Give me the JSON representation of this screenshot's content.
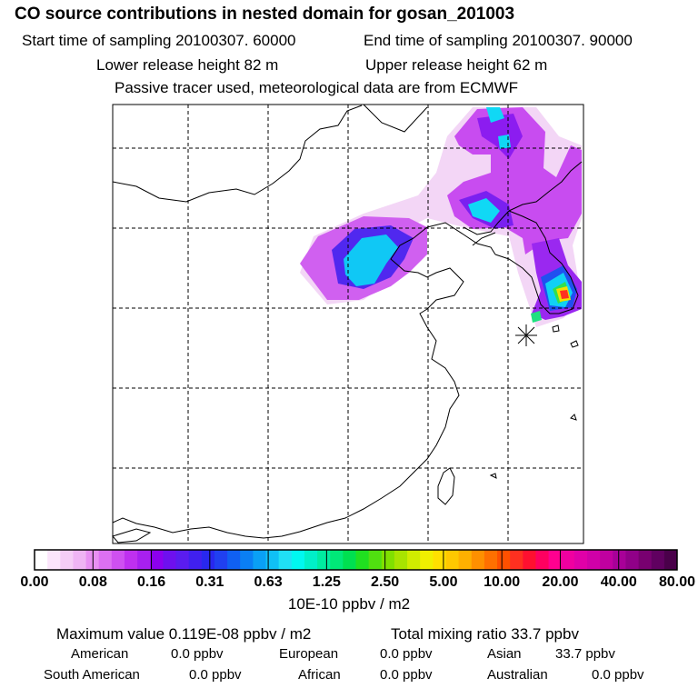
{
  "header": {
    "title": "CO  source contributions in nested domain for gosan_201003",
    "start_time": "Start time of sampling 20100307. 60000",
    "end_time": "End time of sampling 20100307. 90000",
    "lower_height": "Lower release height   82 m",
    "upper_height": "Upper release height   62 m",
    "tracer_note": "Passive tracer used, meteorological data are from ECMWF"
  },
  "chart_data": {
    "type": "heatmap",
    "title": "CO  source contributions in nested domain for gosan_201003",
    "colorbar": {
      "ticks": [
        "0.00",
        "0.08",
        "0.16",
        "0.31",
        "0.63",
        "1.25",
        "2.50",
        "5.00",
        "10.00",
        "20.00",
        "40.00",
        "80.00"
      ],
      "unit": "10E-10 ppbv / m2",
      "colors": [
        "#ffffff",
        "#fbe5fb",
        "#f5cdf6",
        "#efb4f4",
        "#e890f3",
        "#dd70f2",
        "#cf50f1",
        "#bf30f0",
        "#a820f0",
        "#8c00ee",
        "#6e10ee",
        "#5a1cef",
        "#4020ef",
        "#2828ef",
        "#2040f0",
        "#1060f2",
        "#0a7ff4",
        "#0aa0f5",
        "#10c0f5",
        "#20e0f5",
        "#00f8f0",
        "#00f0c8",
        "#00eca0",
        "#00e878",
        "#00e050",
        "#20e020",
        "#50e010",
        "#80e000",
        "#a8e400",
        "#d0ec00",
        "#f0f000",
        "#ffe000",
        "#ffc800",
        "#ffb000",
        "#ff9000",
        "#ff7000",
        "#ff5000",
        "#ff3020",
        "#ff1030",
        "#ff0060",
        "#ff0090",
        "#f000a0",
        "#e000a8",
        "#d000a8",
        "#c000a0",
        "#a80098",
        "#900088",
        "#780070",
        "#600060",
        "#4a004a"
      ]
    },
    "receptor": "gosan",
    "max_value": "0.119E-08",
    "total_mixing_ratio": "33.7"
  },
  "summary": {
    "max_label": "Maximum value  0.119E-08 ppbv / m2",
    "total_label": "Total mixing ratio       33.7 ppbv",
    "regions": [
      {
        "name": "American",
        "value": "0.0 ppbv"
      },
      {
        "name": "European",
        "value": "0.0 ppbv"
      },
      {
        "name": "Asian",
        "value": "33.7 ppbv"
      },
      {
        "name": "South American",
        "value": "0.0 ppbv"
      },
      {
        "name": "African",
        "value": "0.0 ppbv"
      },
      {
        "name": "Australian",
        "value": "0.0 ppbv"
      }
    ]
  }
}
